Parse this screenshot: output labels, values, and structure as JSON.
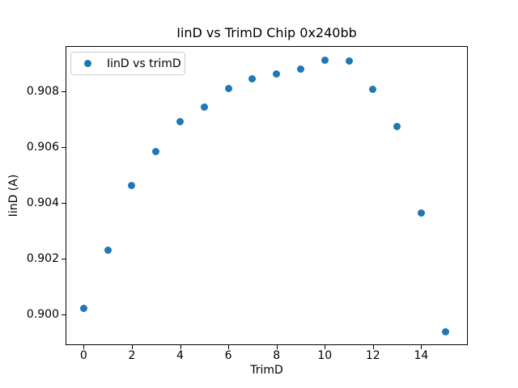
{
  "chart_data": {
    "type": "scatter",
    "title": "IinD vs TrimD Chip 0x240bb",
    "xlabel": "TrimD",
    "ylabel": "IinD (A)",
    "legend": {
      "entries": [
        "IinD vs trimD"
      ],
      "position": "upper-left"
    },
    "x": [
      0,
      1,
      2,
      3,
      4,
      5,
      6,
      7,
      8,
      9,
      10,
      11,
      12,
      13,
      14,
      15
    ],
    "y": [
      0.9002,
      0.90229,
      0.90464,
      0.90585,
      0.90693,
      0.90744,
      0.90812,
      0.90847,
      0.90863,
      0.90882,
      0.90913,
      0.90911,
      0.90808,
      0.90676,
      0.90364,
      0.89936
    ],
    "xticks": [
      0,
      2,
      4,
      6,
      8,
      10,
      12,
      14
    ],
    "yticks": [
      0.9,
      0.902,
      0.904,
      0.906,
      0.908
    ],
    "xlim": [
      -0.75,
      15.75
    ],
    "ylim": [
      0.89889,
      0.90964
    ],
    "grid": false,
    "marker_color": "#1f77b4",
    "background_color": "#ffffff"
  }
}
